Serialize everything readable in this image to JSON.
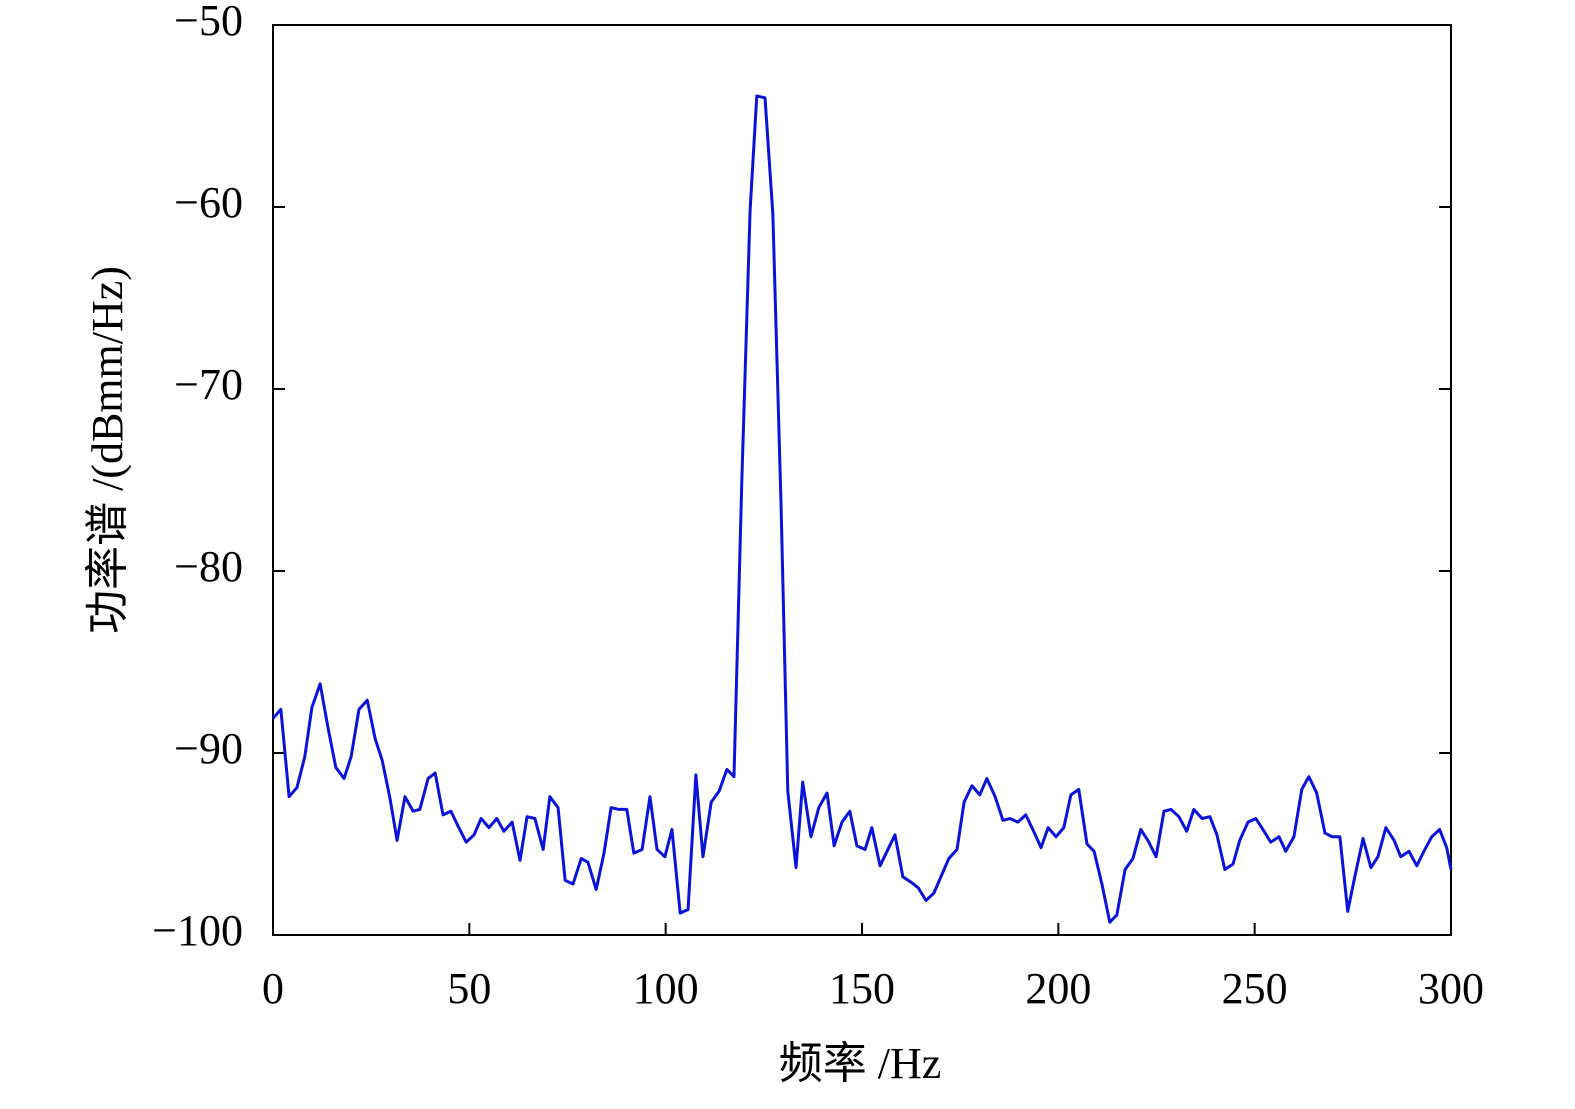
{
  "chart_data": {
    "type": "line",
    "xlabel": "频率 /Hz",
    "ylabel": "功率谱 /(dBmm/Hz)",
    "xlim": [
      0,
      300
    ],
    "xticks": [
      0,
      50,
      100,
      150,
      200,
      250,
      300
    ],
    "ylim": [
      -100,
      -50
    ],
    "yticks": [
      {
        "value": -100,
        "label": "−100"
      },
      {
        "value": -90,
        "label": "−90"
      },
      {
        "value": -80,
        "label": "−80"
      },
      {
        "value": -70,
        "label": "−70"
      },
      {
        "value": -60,
        "label": "−60"
      },
      {
        "value": -50,
        "label": "−50"
      }
    ],
    "grid": false,
    "x": [
      0,
      2.0,
      4.1,
      6.1,
      8.1,
      9.9,
      12.0,
      14.0,
      16.0,
      18.1,
      19.9,
      21.9,
      24.0,
      26.0,
      27.8,
      29.8,
      31.6,
      33.6,
      35.7,
      37.4,
      39.5,
      41.3,
      43.3,
      45.3,
      47.1,
      49.2,
      51.2,
      53.0,
      55.0,
      57.0,
      58.8,
      60.9,
      62.9,
      64.7,
      66.7,
      68.8,
      70.5,
      72.6,
      74.4,
      76.4,
      78.5,
      80.2,
      82.3,
      84.3,
      86.1,
      88.1,
      90.1,
      91.9,
      94.0,
      96.0,
      97.8,
      99.8,
      101.6,
      103.7,
      105.7,
      107.7,
      109.5,
      111.6,
      113.6,
      115.6,
      117.4,
      119.4,
      121.5,
      123.2,
      125.3,
      127.3,
      129.4,
      131.1,
      133.2,
      134.9,
      137.0,
      139.0,
      141.1,
      142.9,
      144.9,
      146.9,
      148.7,
      150.8,
      152.5,
      154.6,
      156.6,
      158.4,
      160.4,
      162.5,
      164.3,
      166.3,
      168.3,
      170.1,
      172.1,
      174.2,
      176.0,
      178.0,
      180.0,
      181.8,
      183.9,
      185.9,
      187.7,
      189.7,
      191.7,
      193.5,
      195.6,
      197.4,
      199.4,
      201.4,
      203.2,
      205.2,
      207.3,
      209.1,
      211.1,
      213.1,
      214.9,
      217.0,
      219.0,
      221.0,
      222.8,
      224.9,
      226.9,
      228.7,
      230.7,
      232.7,
      234.5,
      236.6,
      238.6,
      240.4,
      242.4,
      244.5,
      246.2,
      248.3,
      250.3,
      252.1,
      254.1,
      256.2,
      257.9,
      260.0,
      262.0,
      263.8,
      265.8,
      267.9,
      269.7,
      271.7,
      273.7,
      275.5,
      277.6,
      279.6,
      281.4,
      283.4,
      285.5,
      287.2,
      289.3,
      291.3,
      293.1,
      295.1,
      297.1,
      298.9,
      300
    ],
    "series": [
      {
        "color": "#0a14d9",
        "values": [
          -88.1,
          -87.6,
          -92.4,
          -91.9,
          -90.2,
          -87.5,
          -86.2,
          -88.6,
          -90.8,
          -91.4,
          -90.2,
          -87.6,
          -87.1,
          -89.2,
          -90.4,
          -92.5,
          -94.8,
          -92.4,
          -93.2,
          -93.1,
          -91.4,
          -91.1,
          -93.4,
          -93.2,
          -94.0,
          -94.9,
          -94.5,
          -93.6,
          -94.1,
          -93.6,
          -94.3,
          -93.8,
          -95.9,
          -93.5,
          -93.6,
          -95.3,
          -92.4,
          -93.0,
          -97.0,
          -97.2,
          -95.8,
          -96.0,
          -97.5,
          -95.5,
          -93.0,
          -93.1,
          -93.1,
          -95.5,
          -95.3,
          -92.4,
          -95.3,
          -95.7,
          -94.2,
          -98.8,
          -98.6,
          -91.2,
          -95.7,
          -92.7,
          -92.1,
          -90.9,
          -91.3,
          -75.0,
          -60.2,
          -53.9,
          -54.0,
          -60.4,
          -76.5,
          -92.1,
          -96.3,
          -91.6,
          -94.6,
          -93.0,
          -92.2,
          -95.1,
          -93.8,
          -93.2,
          -95.1,
          -95.3,
          -94.1,
          -96.2,
          -95.3,
          -94.5,
          -96.8,
          -97.1,
          -97.4,
          -98.1,
          -97.7,
          -96.8,
          -95.8,
          -95.3,
          -92.7,
          -91.8,
          -92.3,
          -91.4,
          -92.4,
          -93.7,
          -93.6,
          -93.8,
          -93.4,
          -94.2,
          -95.2,
          -94.1,
          -94.6,
          -94.1,
          -92.3,
          -92.0,
          -95.0,
          -95.4,
          -97.2,
          -99.3,
          -98.9,
          -96.4,
          -95.8,
          -94.2,
          -94.8,
          -95.7,
          -93.2,
          -93.1,
          -93.5,
          -94.3,
          -93.1,
          -93.6,
          -93.5,
          -94.5,
          -96.4,
          -96.1,
          -94.8,
          -93.8,
          -93.6,
          -94.2,
          -94.9,
          -94.6,
          -95.4,
          -94.6,
          -92.0,
          -91.3,
          -92.2,
          -94.4,
          -94.6,
          -94.6,
          -98.7,
          -96.8,
          -94.7,
          -96.3,
          -95.7,
          -94.1,
          -94.8,
          -95.7,
          -95.4,
          -96.2,
          -95.4,
          -94.6,
          -94.2,
          -95.2,
          -96.4
        ]
      }
    ]
  }
}
